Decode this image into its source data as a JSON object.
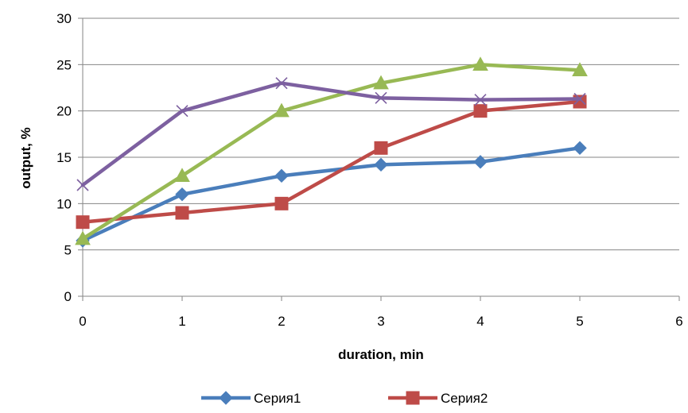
{
  "chart_data": {
    "type": "line",
    "title": "",
    "xlabel": "duration, min",
    "ylabel": "output, %",
    "xlim": [
      0,
      6
    ],
    "ylim": [
      0,
      30
    ],
    "x_ticks": [
      "0",
      "1",
      "2",
      "3",
      "4",
      "5",
      "6"
    ],
    "y_ticks": [
      "0",
      "5",
      "10",
      "15",
      "20",
      "25",
      "30"
    ],
    "grid": "horizontal",
    "legend_position": "bottom",
    "series": [
      {
        "name": "Серия1",
        "color": "#4a7ebb",
        "marker": "diamond",
        "in_legend": true,
        "x": [
          0,
          1,
          2,
          3,
          4,
          5
        ],
        "y": [
          6,
          11,
          13,
          14.2,
          14.5,
          16
        ]
      },
      {
        "name": "Серия2",
        "color": "#be4b48",
        "marker": "square",
        "in_legend": true,
        "x": [
          0,
          1,
          2,
          3,
          4,
          5
        ],
        "y": [
          8,
          9,
          10,
          16,
          20,
          21
        ]
      },
      {
        "color": "#98b954",
        "marker": "triangle",
        "in_legend": false,
        "x": [
          0,
          1,
          2,
          3,
          4,
          5
        ],
        "y": [
          6.2,
          13,
          20,
          23,
          25,
          24.4
        ]
      },
      {
        "color": "#7d60a0",
        "marker": "x",
        "in_legend": false,
        "x": [
          0,
          1,
          2,
          3,
          4,
          5
        ],
        "y": [
          12,
          20,
          23,
          21.4,
          21.2,
          21.3
        ]
      }
    ]
  }
}
